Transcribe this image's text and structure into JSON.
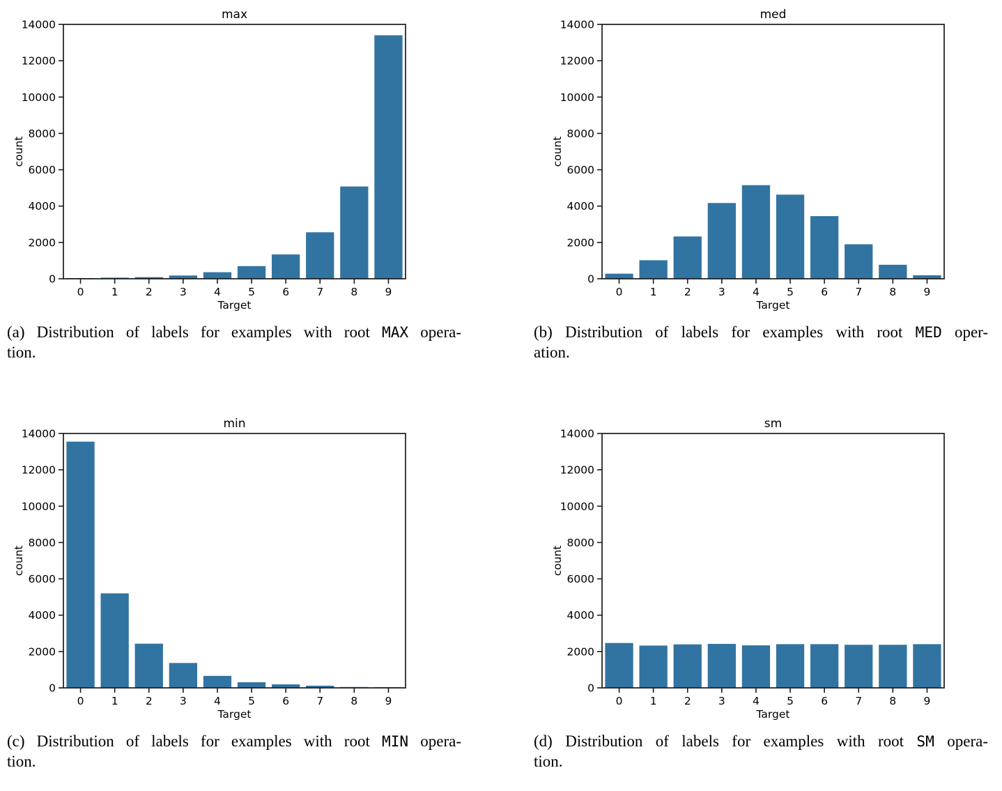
{
  "page": {
    "background": "#ffffff",
    "text_color": "#000000"
  },
  "figure": {
    "bar_color": "#3274a1",
    "spine_color": "#1a1a1a",
    "captions": [
      {
        "label": "(a)",
        "body": "Distribution of labels for examples with root",
        "code": "MAX",
        "tail": "opera-",
        "line2": "tion."
      },
      {
        "label": "(b)",
        "body": "Distribution of labels for examples with root",
        "code": "MED",
        "tail": "oper-",
        "line2": "ation."
      },
      {
        "label": "(c)",
        "body": "Distribution of labels for examples with root",
        "code": "MIN",
        "tail": "opera-",
        "line2": "tion."
      },
      {
        "label": "(d)",
        "body": "Distribution of labels for examples with root",
        "code": "SM",
        "tail": "opera-",
        "line2": "tion."
      }
    ]
  },
  "chart_data": [
    {
      "type": "bar",
      "title": "max",
      "xlabel": "Target",
      "ylabel": "count",
      "categories": [
        "0",
        "1",
        "2",
        "3",
        "4",
        "5",
        "6",
        "7",
        "8",
        "9"
      ],
      "values": [
        25,
        60,
        90,
        180,
        360,
        700,
        1340,
        2560,
        5080,
        13400
      ],
      "ylim": [
        0,
        14000
      ],
      "yticks": [
        0,
        2000,
        4000,
        6000,
        8000,
        10000,
        12000,
        14000
      ],
      "grid": false,
      "legend": "none"
    },
    {
      "type": "bar",
      "title": "med",
      "xlabel": "Target",
      "ylabel": "count",
      "categories": [
        "0",
        "1",
        "2",
        "3",
        "4",
        "5",
        "6",
        "7",
        "8",
        "9"
      ],
      "values": [
        280,
        1020,
        2330,
        4170,
        5150,
        4630,
        3450,
        1900,
        770,
        190
      ],
      "ylim": [
        0,
        14000
      ],
      "yticks": [
        0,
        2000,
        4000,
        6000,
        8000,
        10000,
        12000,
        14000
      ],
      "grid": false,
      "legend": "none"
    },
    {
      "type": "bar",
      "title": "min",
      "xlabel": "Target",
      "ylabel": "count",
      "categories": [
        "0",
        "1",
        "2",
        "3",
        "4",
        "5",
        "6",
        "7",
        "8",
        "9"
      ],
      "values": [
        13550,
        5200,
        2430,
        1370,
        660,
        310,
        190,
        120,
        45,
        20
      ],
      "ylim": [
        0,
        14000
      ],
      "yticks": [
        0,
        2000,
        4000,
        6000,
        8000,
        10000,
        12000,
        14000
      ],
      "grid": false,
      "legend": "none"
    },
    {
      "type": "bar",
      "title": "sm",
      "xlabel": "Target",
      "ylabel": "count",
      "categories": [
        "0",
        "1",
        "2",
        "3",
        "4",
        "5",
        "6",
        "7",
        "8",
        "9"
      ],
      "values": [
        2470,
        2330,
        2395,
        2420,
        2340,
        2405,
        2405,
        2370,
        2370,
        2405
      ],
      "ylim": [
        0,
        14000
      ],
      "yticks": [
        0,
        2000,
        4000,
        6000,
        8000,
        10000,
        12000,
        14000
      ],
      "grid": false,
      "legend": "none"
    }
  ]
}
